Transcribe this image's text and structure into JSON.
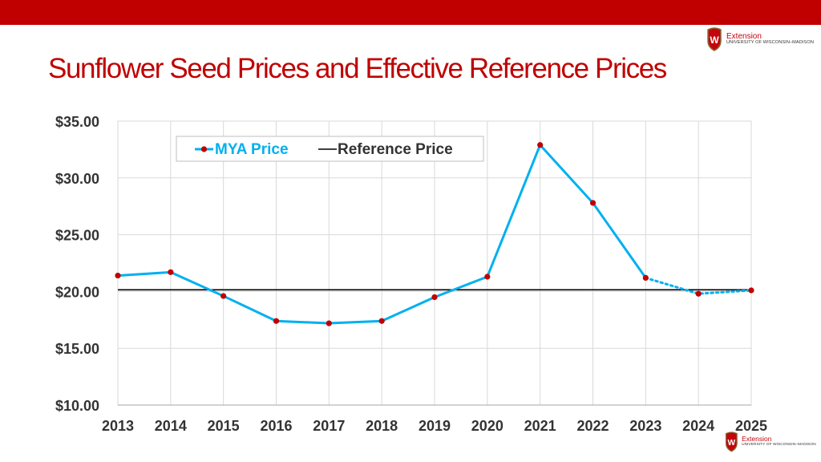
{
  "slide": {
    "title": "Sunflower Seed Prices and Effective Reference Prices",
    "colors": {
      "top_bar": "#c00000",
      "title": "#c00000"
    }
  },
  "logo": {
    "name": "Extension",
    "institution": "UNIVERSITY OF WISCONSIN–MADISON",
    "crest_letter": "W"
  },
  "chart_data": {
    "type": "line",
    "title": "",
    "xlabel": "",
    "ylabel": "",
    "categories": [
      "2013",
      "2014",
      "2015",
      "2016",
      "2017",
      "2018",
      "2019",
      "2020",
      "2021",
      "2022",
      "2023",
      "2024",
      "2025"
    ],
    "ylim": [
      10,
      35
    ],
    "y_ticks": [
      35,
      30,
      25,
      20,
      15,
      10
    ],
    "y_tick_labels": [
      "$35.00",
      "$30.00",
      "$25.00",
      "$20.00",
      "$15.00",
      "$10.00"
    ],
    "grid": true,
    "legend_position": "top-left",
    "series": [
      {
        "name": "MYA Price",
        "color": "#00b0f0",
        "marker_color": "#c00000",
        "values": [
          21.4,
          21.7,
          19.6,
          17.4,
          17.2,
          17.4,
          19.5,
          21.3,
          32.9,
          27.8,
          21.2,
          19.8,
          20.1
        ],
        "projected_from_index": 10
      },
      {
        "name": "Reference Price",
        "color": "#000000",
        "values": [
          20.15,
          20.15,
          20.15,
          20.15,
          20.15,
          20.15,
          20.15,
          20.15,
          20.15,
          20.15,
          20.15,
          20.15,
          20.15
        ]
      }
    ]
  }
}
